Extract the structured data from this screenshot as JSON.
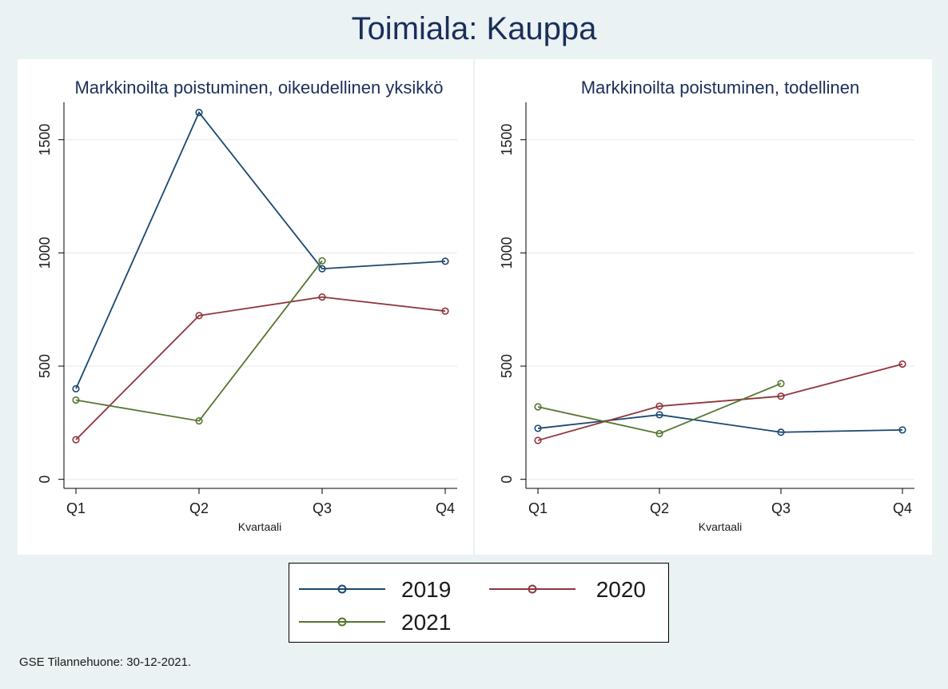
{
  "figure": {
    "title": "Toimiala: Kauppa",
    "footnote": "GSE Tilannehuone: 30-12-2021."
  },
  "colors": {
    "2019": "#1a476f",
    "2020": "#90353b",
    "2021": "#55752f"
  },
  "chart_data": [
    {
      "type": "line",
      "title": "Markkinoilta poistuminen, oikeudellinen yksikkö",
      "xlabel": "Kvartaali",
      "ylabel": "",
      "categories": [
        "Q1",
        "Q2",
        "Q3",
        "Q4"
      ],
      "yticks": [
        0,
        500,
        1000,
        1500
      ],
      "ylim": [
        -40,
        1665
      ],
      "grid": true,
      "legend": "bottom",
      "series": [
        {
          "name": "2019",
          "values": [
            400,
            1620,
            930,
            963
          ]
        },
        {
          "name": "2020",
          "values": [
            175,
            723,
            805,
            743
          ]
        },
        {
          "name": "2021",
          "values": [
            350,
            258,
            965,
            null
          ]
        }
      ]
    },
    {
      "type": "line",
      "title": "Markkinoilta poistuminen, todellinen",
      "xlabel": "Kvartaali",
      "ylabel": "",
      "categories": [
        "Q1",
        "Q2",
        "Q3",
        "Q4"
      ],
      "yticks": [
        0,
        500,
        1000,
        1500
      ],
      "ylim": [
        -40,
        1665
      ],
      "grid": true,
      "legend": "bottom",
      "series": [
        {
          "name": "2019",
          "values": [
            225,
            285,
            208,
            218
          ]
        },
        {
          "name": "2020",
          "values": [
            172,
            323,
            367,
            509
          ]
        },
        {
          "name": "2021",
          "values": [
            320,
            202,
            423,
            null
          ]
        }
      ]
    }
  ],
  "legend": {
    "items": [
      "2019",
      "2020",
      "2021"
    ]
  }
}
